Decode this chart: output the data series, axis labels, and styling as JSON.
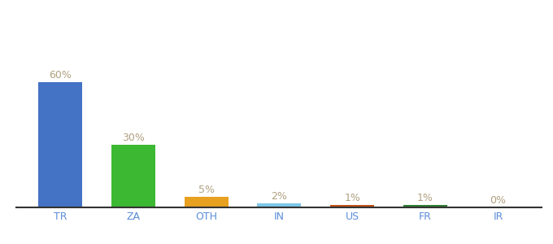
{
  "categories": [
    "TR",
    "ZA",
    "OTH",
    "IN",
    "US",
    "FR",
    "IR"
  ],
  "values": [
    60,
    30,
    5,
    2,
    1,
    1,
    0
  ],
  "labels": [
    "60%",
    "30%",
    "5%",
    "2%",
    "1%",
    "1%",
    "0%"
  ],
  "bar_colors": [
    "#4472c4",
    "#3cb832",
    "#e8a020",
    "#7dc8e8",
    "#c0521a",
    "#2e7d32",
    "#cccccc"
  ],
  "background_color": "#ffffff",
  "label_color": "#b0a080",
  "xlabel_color": "#5b8dd9",
  "ylim": [
    0,
    90
  ],
  "bar_width": 0.6,
  "figsize": [
    6.8,
    3.0
  ],
  "dpi": 100
}
